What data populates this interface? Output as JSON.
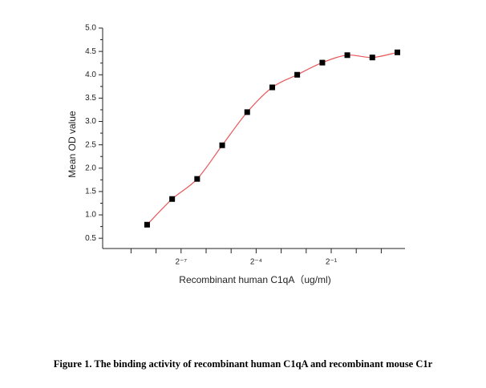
{
  "chart_data": {
    "type": "scatter",
    "caption": "Figure 1. The binding activity of recombinant human C1qA and recombinant mouse C1r",
    "x_label": "Recombinant human C1qA（ug/ml)",
    "y_label": "Mean OD value",
    "xscale": "log2",
    "x": [
      0.00305,
      0.0061,
      0.0122,
      0.0244,
      0.0488,
      0.0977,
      0.195,
      0.391,
      0.781,
      1.5625,
      3.125
    ],
    "series": [
      {
        "color": "#000000",
        "fit_color": "#e8575a",
        "values": [
          0.79,
          1.34,
          1.77,
          2.49,
          3.2,
          3.73,
          4.0,
          4.26,
          4.42,
          4.37,
          4.48
        ]
      }
    ],
    "xlim": [
      0.00089,
      3.86
    ],
    "xticks": [
      {
        "value": 0.0078125,
        "label": "2⁻⁷"
      },
      {
        "value": 0.0625,
        "label": "2⁻⁴"
      },
      {
        "value": 0.5,
        "label": "2⁻¹"
      }
    ],
    "xminorticks": [
      0.001953125,
      0.00390625,
      0.015625,
      0.03125,
      0.125,
      0.25,
      1,
      2
    ],
    "ylim": [
      0.28,
      5.0
    ],
    "yticks": [
      {
        "value": 0.5,
        "label": "0.5"
      },
      {
        "value": 1,
        "label": "1.0"
      },
      {
        "value": 1.5,
        "label": "1.5"
      },
      {
        "value": 2,
        "label": "2.0"
      },
      {
        "value": 2.5,
        "label": "2.5"
      },
      {
        "value": 3,
        "label": "3.0"
      },
      {
        "value": 3.5,
        "label": "3.5"
      },
      {
        "value": 4,
        "label": "4.0"
      },
      {
        "value": 4.5,
        "label": "4.5"
      },
      {
        "value": 5,
        "label": "5.0"
      }
    ],
    "yminorticks": [
      0.75,
      1.25,
      1.75,
      2.25,
      2.75,
      3.25,
      3.75,
      4.25,
      4.75
    ]
  }
}
